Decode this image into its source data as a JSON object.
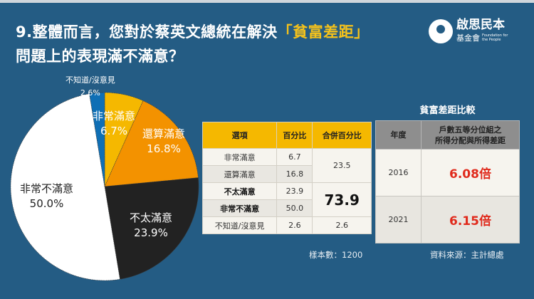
{
  "title": {
    "line1_prefix": "9.整體而言，您對於蔡英文總統在解決",
    "highlight": "「貧富差距」",
    "line2": "問題上的表現滿不滿意？",
    "highlight_color": "#f5c21b"
  },
  "logo": {
    "name": "啟思民本",
    "sub": "基金會",
    "english": "Foundation for the People"
  },
  "chart_data": {
    "type": "pie",
    "categories": [
      "非常滿意",
      "還算滿意",
      "不太滿意",
      "非常不滿意",
      "不知道/沒意見"
    ],
    "values": [
      6.7,
      16.8,
      23.9,
      50.0,
      2.6
    ],
    "labels": [
      "6.7%",
      "16.8%",
      "23.9%",
      "50.0%",
      "2.6%"
    ],
    "colors": [
      "#f5b800",
      "#f39200",
      "#222222",
      "#ffffff",
      "#0f6fb5"
    ]
  },
  "table1": {
    "headers": [
      "選項",
      "百分比",
      "合併百分比"
    ],
    "rows": [
      {
        "option": "非常滿意",
        "pct": "6.7"
      },
      {
        "option": "還算滿意",
        "pct": "16.8"
      },
      {
        "option": "不太滿意",
        "pct": "23.9"
      },
      {
        "option": "非常不滿意",
        "pct": "50.0"
      },
      {
        "option": "不知道/沒意見",
        "pct": "2.6"
      }
    ],
    "combined": [
      "23.5",
      "73.9",
      "2.6"
    ]
  },
  "table2": {
    "title": "貧富差距比較",
    "headers": [
      "年度",
      "戶數五等分位組之\n所得分配與所得差距"
    ],
    "header2_line1": "戶數五等分位組之",
    "header2_line2": "所得分配與所得差距",
    "rows": [
      {
        "year": "2016",
        "value": "6.08倍"
      },
      {
        "year": "2021",
        "value": "6.15倍"
      }
    ]
  },
  "sample_size": "樣本數：1200",
  "source": "資料來源：主計總處"
}
